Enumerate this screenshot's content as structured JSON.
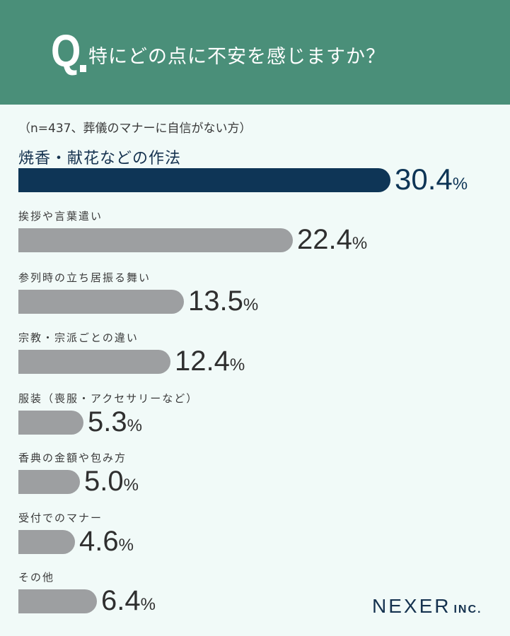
{
  "header": {
    "q_mark": "Q",
    "question": "特にどの点に不安を感じますか？"
  },
  "sample_note": "（n=437、葬儀のマナーに自信がない方）",
  "items": [
    {
      "label": "焼香・献花などの作法",
      "value": "30.4",
      "unit": "%"
    },
    {
      "label": "挨拶や言葉遣い",
      "value": "22.4",
      "unit": "%"
    },
    {
      "label": "参列時の立ち居振る舞い",
      "value": "13.5",
      "unit": "%"
    },
    {
      "label": "宗教・宗派ごとの違い",
      "value": "12.4",
      "unit": "%"
    },
    {
      "label": "服装（喪服・アクセサリーなど）",
      "value": "5.3",
      "unit": "%"
    },
    {
      "label": "香典の金額や包み方",
      "value": "5.0",
      "unit": "%"
    },
    {
      "label": "受付でのマナー",
      "value": "4.6",
      "unit": "%"
    },
    {
      "label": "その他",
      "value": "6.4",
      "unit": "%"
    }
  ],
  "logo": {
    "name": "NEXER",
    "suffix": "INC."
  },
  "colors": {
    "header": "#4a8f79",
    "highlight_bar": "#0e3556",
    "bar": "#9d9fa1",
    "background": "#f1faf8"
  },
  "chart_data": {
    "type": "bar",
    "orientation": "horizontal",
    "title": "特にどの点に不安を感じますか？",
    "subtitle": "（n=437、葬儀のマナーに自信がない方）",
    "categories": [
      "焼香・献花などの作法",
      "挨拶や言葉遣い",
      "参列時の立ち居振る舞い",
      "宗教・宗派ごとの違い",
      "服装（喪服・アクセサリーなど）",
      "香典の金額や包み方",
      "受付でのマナー",
      "その他"
    ],
    "values": [
      30.4,
      22.4,
      13.5,
      12.4,
      5.3,
      5.0,
      4.6,
      6.4
    ],
    "unit": "%",
    "xlabel": "",
    "ylabel": "",
    "grid": false,
    "legend": null,
    "highlight": "焼香・献花などの作法"
  }
}
